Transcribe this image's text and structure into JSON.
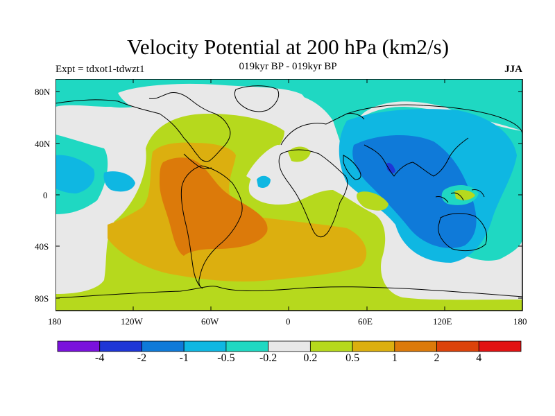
{
  "title": "Velocity Potential at 200 hPa (km2/s)",
  "left_label": "Expt = tdxot1-tdwzt1",
  "center_label": "019kyr BP - 019kyr BP",
  "right_label": "JJA",
  "lat_ticks": [
    "80N",
    "40N",
    "0",
    "40S",
    "80S"
  ],
  "lon_ticks": [
    "180",
    "120W",
    "60W",
    "0",
    "60E",
    "120E",
    "180"
  ],
  "colorbar": {
    "colors": [
      "#7a12dc",
      "#1e36d6",
      "#0f7ad9",
      "#0fb7e2",
      "#1fd8c2",
      "#e8e8e8",
      "#b6d91d",
      "#dcaf0f",
      "#dc7a0a",
      "#dc430a",
      "#e21212"
    ],
    "labels": [
      "-4",
      "-2",
      "-1",
      "-0.5",
      "-0.2",
      "0.2",
      "0.5",
      "1",
      "2",
      "4"
    ]
  },
  "field_colors": {
    "background": "#e8e8e8",
    "teal": "#1fd8c2",
    "light_blue": "#0fb7e2",
    "blue": "#0f7ad9",
    "dark_blue": "#1e36d6",
    "green": "#b6d91d",
    "gold": "#dcaf0f",
    "orange": "#dc7a0a"
  }
}
